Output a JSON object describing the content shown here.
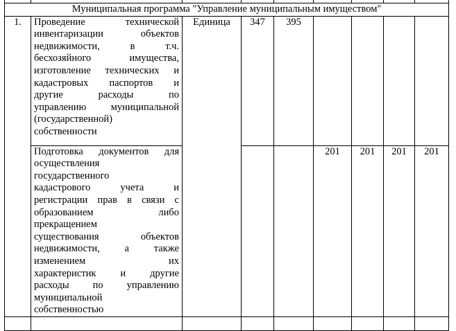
{
  "program_title": "Муниципальная программа \"Управление муниципальным имуществом\"",
  "rows": [
    {
      "num": "1.",
      "unit": "Единица",
      "values": [
        "347",
        "395",
        "",
        "",
        "",
        ""
      ],
      "lines": [
        {
          "t": "Проведение технической",
          "j": true
        },
        {
          "t": "инвентаризации объектов",
          "j": true
        },
        {
          "t": "недвижимости, в т.ч.",
          "j": true
        },
        {
          "t": "бесхозяйного имущества,",
          "j": true
        },
        {
          "t": "изготовление технических и",
          "j": true
        },
        {
          "t": "кадастровых паспортов и",
          "j": true
        },
        {
          "t": "другие расходы по",
          "j": true
        },
        {
          "t": "управлению муниципальной",
          "j": true
        },
        {
          "t": "(государственной)",
          "j": false
        },
        {
          "t": "собственности",
          "j": false
        }
      ]
    },
    {
      "values": [
        "",
        "",
        "201",
        "201",
        "201",
        "201"
      ],
      "lines": [
        {
          "t": "Подготовка документов для",
          "j": true
        },
        {
          "t": "осуществления",
          "j": false
        },
        {
          "t": "государственного",
          "j": false
        },
        {
          "t": "кадастрового учета и",
          "j": true
        },
        {
          "t": "регистрации прав в связи с",
          "j": true
        },
        {
          "t": "образованием либо",
          "j": true
        },
        {
          "t": "прекращением",
          "j": false
        },
        {
          "t": "существования объектов",
          "j": true
        },
        {
          "t": "недвижимости, а также",
          "j": true
        },
        {
          "t": "изменением их",
          "j": true
        },
        {
          "t": "характеристик и другие",
          "j": true
        },
        {
          "t": "расходы по управлению",
          "j": true
        },
        {
          "t": "муниципальной",
          "j": false
        },
        {
          "t": "собственностью",
          "j": false
        }
      ]
    }
  ]
}
